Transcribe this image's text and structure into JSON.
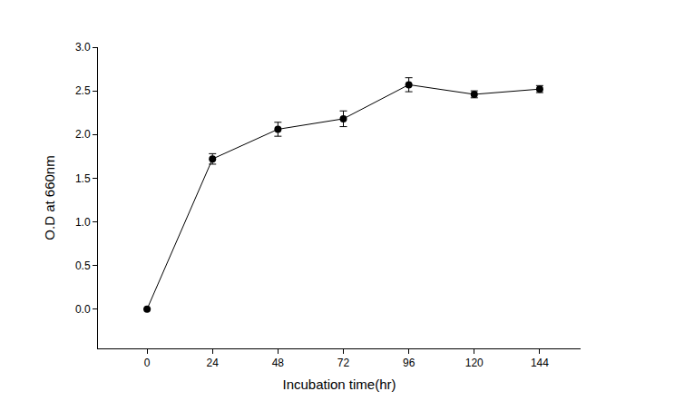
{
  "chart_data": {
    "type": "line",
    "x_label": "Incubation time(hr)",
    "y_label": "O.D at 660nm",
    "x": [
      0,
      24,
      48,
      72,
      96,
      120,
      144
    ],
    "values": [
      0.0,
      1.72,
      2.06,
      2.18,
      2.57,
      2.46,
      2.52
    ],
    "errors": [
      0.0,
      0.06,
      0.08,
      0.09,
      0.08,
      0.04,
      0.04
    ],
    "color": "#000000",
    "marker": "circle",
    "line_style": "solid",
    "grid": false,
    "xlim": [
      -18,
      159
    ],
    "xticks": [
      0,
      24,
      48,
      72,
      96,
      120,
      144
    ],
    "ylim": [
      -0.45,
      3.0
    ],
    "yticks": [
      {
        "value": 0,
        "label": "0.0"
      },
      0.5,
      {
        "value": 1,
        "label": "1.0"
      },
      1.5,
      {
        "value": 2,
        "label": "2.0"
      },
      2.5,
      {
        "value": 3,
        "label": "3.0"
      }
    ]
  }
}
